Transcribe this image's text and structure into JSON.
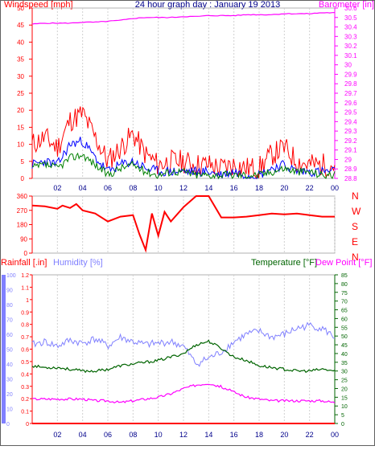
{
  "header": {
    "left_label": "Windspeed [mph]",
    "title": "24 hour graph day : January 19 2013",
    "right_label": "Barometer [in]"
  },
  "colors": {
    "wind_gust": "#ff0000",
    "wind_avg": "#0000ff",
    "wind_speed": "#008000",
    "barometer": "#ff00ff",
    "direction": "#ff0000",
    "humidity": "#8080ff",
    "temperature": "#006400",
    "dewpoint": "#ff00ff",
    "rain": "#ff0000",
    "text_blue": "#00008b"
  },
  "panels": {
    "bottom": {
      "rain_label": "Rainfall [.in]",
      "humidity_label": "Humidity [%]",
      "temp_label": "Temperature [°F]",
      "dew_label": "Dew Point [°F]"
    },
    "direction": {
      "compass": [
        "N",
        "W",
        "S",
        "E",
        "N"
      ]
    }
  },
  "x_ticks": [
    "02",
    "04",
    "06",
    "08",
    "10",
    "12",
    "14",
    "16",
    "18",
    "20",
    "22",
    "00"
  ],
  "chart_data": [
    {
      "type": "line",
      "name": "wind-barometer",
      "title": "24 hour graph day : January 19 2013",
      "ylabel": "Windspeed [mph]",
      "ylabel_right": "Barometer [in]",
      "ylim": [
        0,
        50
      ],
      "y_ticks": [
        0,
        5,
        10,
        15,
        20,
        25,
        30,
        35,
        40,
        45,
        50
      ],
      "ylim_right": [
        28.8,
        30.6
      ],
      "y_ticks_right": [
        "28.8",
        "28.9",
        "29",
        "29.1",
        "29.2",
        "29.3",
        "29.4",
        "29.5",
        "29.6",
        "29.7",
        "29.8",
        "29.9",
        "30",
        "30.1",
        "30.2",
        "30.3",
        "30.4",
        "30.5",
        "30.6"
      ],
      "x_hours": [
        0,
        1,
        2,
        3,
        4,
        5,
        6,
        7,
        8,
        9,
        10,
        11,
        12,
        13,
        14,
        15,
        16,
        17,
        18,
        19,
        20,
        21,
        22,
        23,
        24
      ],
      "series": [
        {
          "key": "gust",
          "values": [
            10,
            12,
            9,
            17,
            19,
            12,
            5,
            9,
            13,
            7,
            4,
            5,
            5,
            4,
            4,
            3,
            4,
            3,
            3,
            7,
            9,
            5,
            4,
            4,
            4
          ]
        },
        {
          "key": "average",
          "values": [
            4,
            5,
            4,
            10,
            11,
            6,
            2,
            4,
            5,
            3,
            2,
            2,
            2,
            2,
            2,
            1,
            2,
            1,
            1,
            3,
            4,
            2,
            2,
            2,
            2
          ]
        },
        {
          "key": "speed",
          "values": [
            3,
            4,
            3,
            6,
            7,
            4,
            1,
            3,
            4,
            2,
            1,
            2,
            2,
            1,
            1,
            1,
            1,
            1,
            1,
            2,
            3,
            2,
            2,
            1,
            1
          ]
        },
        {
          "key": "barometer",
          "values": [
            30.43,
            30.44,
            30.44,
            30.44,
            30.45,
            30.45,
            30.46,
            30.47,
            30.49,
            30.5,
            30.5,
            30.5,
            30.51,
            30.51,
            30.52,
            30.52,
            30.52,
            30.53,
            30.53,
            30.53,
            30.54,
            30.54,
            30.54,
            30.55,
            30.55
          ]
        }
      ]
    },
    {
      "type": "line",
      "name": "wind-direction",
      "ylim": [
        0,
        360
      ],
      "y_ticks": [
        0,
        90,
        180,
        270,
        360
      ],
      "x_hours": [
        0,
        1,
        2,
        2.4,
        3,
        3.5,
        4,
        5,
        6,
        7,
        8,
        8.5,
        9,
        9.5,
        10,
        10.5,
        11,
        12,
        13,
        14,
        15,
        16,
        17,
        18,
        19,
        20,
        21,
        22,
        23,
        24
      ],
      "series": [
        {
          "key": "direction",
          "values": [
            300,
            295,
            280,
            300,
            285,
            310,
            270,
            250,
            200,
            230,
            240,
            120,
            20,
            250,
            110,
            260,
            200,
            290,
            360,
            360,
            225,
            225,
            230,
            240,
            250,
            245,
            250,
            240,
            230,
            230
          ]
        }
      ]
    },
    {
      "type": "line",
      "name": "rain-humidity-temperature",
      "ylabel": "Rainfall [.in]",
      "ylabel_humidity": "Humidity [%]",
      "ylabel_right": "Temperature [°F]",
      "ylabel_right2": "Dew Point [°F]",
      "rain_ylim": [
        0,
        1.2
      ],
      "rain_y_ticks": [
        "0",
        "0.1",
        "0.2",
        "0.3",
        "0.4",
        "0.5",
        "0.6",
        "0.7",
        "0.8",
        "0.9",
        "1",
        "1.1",
        "1.2"
      ],
      "humidity_ylim": [
        0,
        100
      ],
      "humidity_y_ticks": [
        0,
        10,
        20,
        30,
        40,
        50,
        60,
        70,
        80,
        90,
        100
      ],
      "temp_ylim": [
        0,
        85
      ],
      "temp_y_ticks": [
        0,
        5,
        10,
        15,
        20,
        25,
        30,
        35,
        40,
        45,
        50,
        55,
        60,
        65,
        70,
        75,
        80,
        85
      ],
      "x_hours": [
        0,
        1,
        2,
        3,
        4,
        5,
        6,
        7,
        8,
        9,
        10,
        11,
        12,
        13,
        14,
        15,
        16,
        17,
        18,
        19,
        20,
        21,
        22,
        23,
        24
      ],
      "series": [
        {
          "key": "humidity",
          "values": [
            53,
            55,
            52,
            56,
            54,
            57,
            52,
            58,
            55,
            53,
            54,
            55,
            52,
            40,
            44,
            48,
            55,
            60,
            62,
            58,
            60,
            64,
            66,
            64,
            58
          ]
        },
        {
          "key": "temperature",
          "values": [
            33,
            32,
            32,
            31,
            30,
            30,
            31,
            33,
            34,
            35,
            36,
            38,
            40,
            45,
            47,
            43,
            38,
            36,
            33,
            32,
            31,
            30,
            30,
            31,
            30
          ]
        },
        {
          "key": "dewpoint",
          "values": [
            14,
            14,
            14,
            14,
            14,
            13,
            13,
            12,
            13,
            14,
            15,
            17,
            20,
            22,
            23,
            21,
            18,
            15,
            14,
            13,
            13,
            13,
            13,
            13,
            12
          ]
        },
        {
          "key": "rain",
          "values": [
            0,
            0,
            0,
            0,
            0,
            0,
            0,
            0,
            0,
            0,
            0,
            0,
            0,
            0,
            0,
            0,
            0,
            0,
            0,
            0,
            0,
            0,
            0,
            0,
            0
          ]
        }
      ]
    }
  ]
}
